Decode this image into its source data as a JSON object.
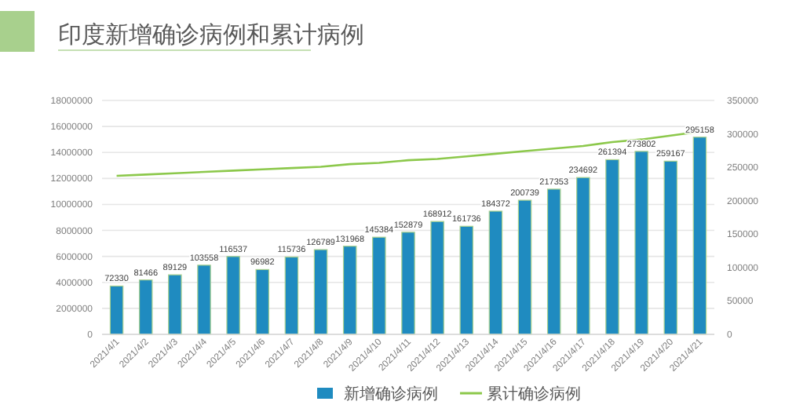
{
  "chart_data": {
    "type": "bar",
    "title": "印度新增确诊病例和累计病例",
    "categories": [
      "2021/4/1",
      "2021/4/2",
      "2021/4/3",
      "2021/4/4",
      "2021/4/5",
      "2021/4/6",
      "2021/4/7",
      "2021/4/8",
      "2021/4/9",
      "2021/4/10",
      "2021/4/11",
      "2021/4/12",
      "2021/4/13",
      "2021/4/14",
      "2021/4/15",
      "2021/4/16",
      "2021/4/17",
      "2021/4/18",
      "2021/4/19",
      "2021/4/20",
      "2021/4/21"
    ],
    "series": [
      {
        "name": "新增确诊病例",
        "axis": "y2",
        "color": "#1f8bc0",
        "values": [
          72330,
          81466,
          89129,
          103558,
          116537,
          96982,
          115736,
          126789,
          131968,
          145384,
          152879,
          168912,
          161736,
          184372,
          200739,
          217353,
          234692,
          261394,
          273802,
          259167,
          295158
        ],
        "value_labels": [
          "72330",
          "81466",
          "89129",
          "103558",
          "116537",
          "96982",
          "115736",
          "126789",
          "131968",
          "145384",
          "152879",
          "168912",
          "161736",
          "184372",
          "200739",
          "217353",
          "234692",
          "261394",
          "273802",
          "259167",
          "295158"
        ]
      },
      {
        "name": "累计确诊病例",
        "type": "line",
        "color": "#8cc84b",
        "values": [
          12200000,
          12300000,
          12400000,
          12500000,
          12600000,
          12700000,
          12800000,
          12900000,
          13100000,
          13200000,
          13400000,
          13500000,
          13700000,
          13900000,
          14100000,
          14300000,
          14500000,
          14800000,
          15000000,
          15300000,
          15600000
        ]
      }
    ],
    "ylim": [
      0,
      18000000
    ],
    "yticks": [
      0,
      2000000,
      4000000,
      6000000,
      8000000,
      10000000,
      12000000,
      14000000,
      16000000,
      18000000
    ],
    "y2lim": [
      0,
      350000
    ],
    "y2ticks": [
      0,
      50000,
      100000,
      150000,
      200000,
      250000,
      300000,
      350000
    ],
    "grid": "y",
    "legend": "bottom",
    "marker": "none",
    "line_style": "solid"
  }
}
